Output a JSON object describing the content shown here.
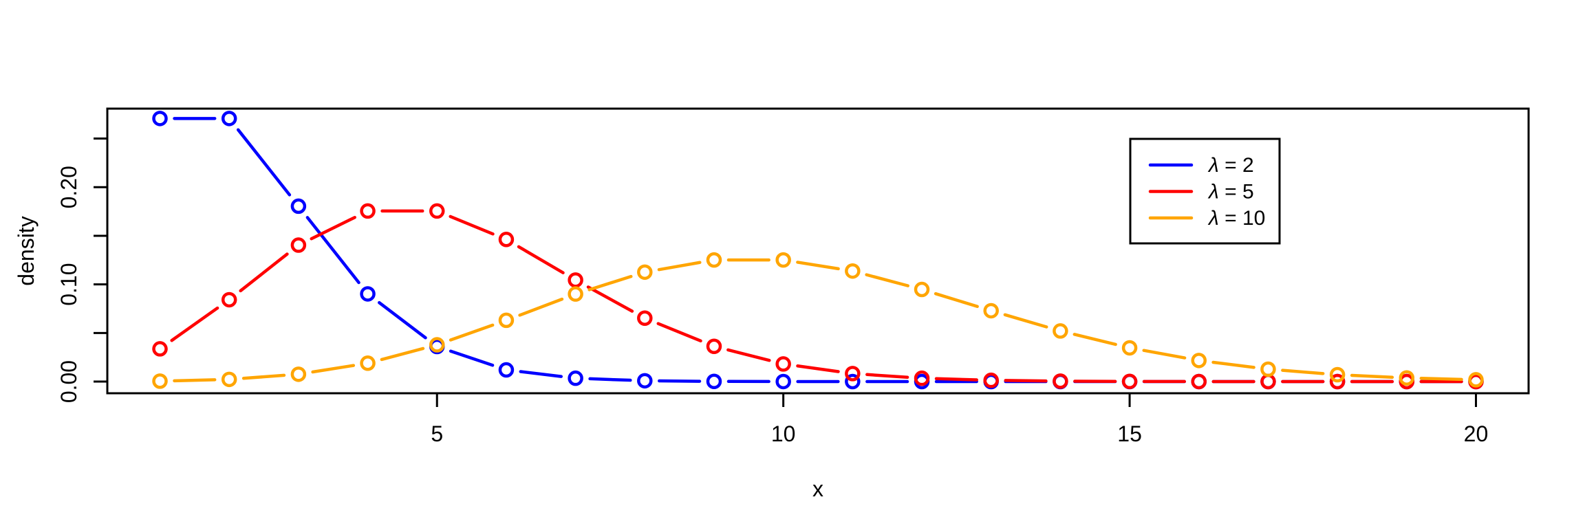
{
  "figure": {
    "background": "#ffffff",
    "axis_color": "#000000",
    "text_color": "#000000"
  },
  "chart_data": {
    "type": "line",
    "title": "",
    "xlabel": "x",
    "ylabel": "density",
    "grid": false,
    "marker": "open-circle",
    "line_style": "solid-with-point-gaps",
    "xlim": [
      0.24,
      20.76
    ],
    "ylim": [
      -0.012,
      0.2808
    ],
    "xticks": [
      5,
      10,
      15,
      20
    ],
    "xtick_labels": [
      "5",
      "10",
      "15",
      "20"
    ],
    "yticks": [
      0,
      0.05,
      0.1,
      0.15,
      0.2,
      0.25
    ],
    "ytick_labels": [
      "0.00",
      "",
      "0.10",
      "",
      "0.20",
      ""
    ],
    "x": [
      1,
      2,
      3,
      4,
      5,
      6,
      7,
      8,
      9,
      10,
      11,
      12,
      13,
      14,
      15,
      16,
      17,
      18,
      19,
      20
    ],
    "series": [
      {
        "name": "λ = 2",
        "color": "#0000ff",
        "values": [
          0.2706706,
          0.2706706,
          0.180447,
          0.0902235,
          0.0360894,
          0.0120298,
          0.0034371,
          0.0008593,
          0.000191,
          3.82e-05,
          6.9e-06,
          1.2e-06,
          2e-07,
          0,
          0,
          0,
          0,
          0,
          0,
          0
        ]
      },
      {
        "name": "λ = 5",
        "color": "#ff0000",
        "values": [
          0.0336897,
          0.0842243,
          0.1403739,
          0.1754674,
          0.1754674,
          0.1462228,
          0.1044449,
          0.065278,
          0.0362656,
          0.0181328,
          0.0082422,
          0.0034343,
          0.0013209,
          0.0004717,
          0.0001572,
          4.91e-05,
          1.45e-05,
          4e-06,
          1.1e-06,
          3e-07
        ]
      },
      {
        "name": "λ = 10",
        "color": "#ffa500",
        "values": [
          0.000454,
          0.00227,
          0.0075667,
          0.0189166,
          0.0378333,
          0.0630555,
          0.0900792,
          0.112599,
          0.12511,
          0.12511,
          0.1137364,
          0.0947803,
          0.0729079,
          0.0520771,
          0.0347181,
          0.0216988,
          0.012764,
          0.0070911,
          0.0037322,
          0.0018661
        ]
      }
    ],
    "legend": {
      "position": "top-right-inside",
      "labels": [
        "λ = 2",
        "λ = 5",
        "λ = 10"
      ]
    }
  }
}
